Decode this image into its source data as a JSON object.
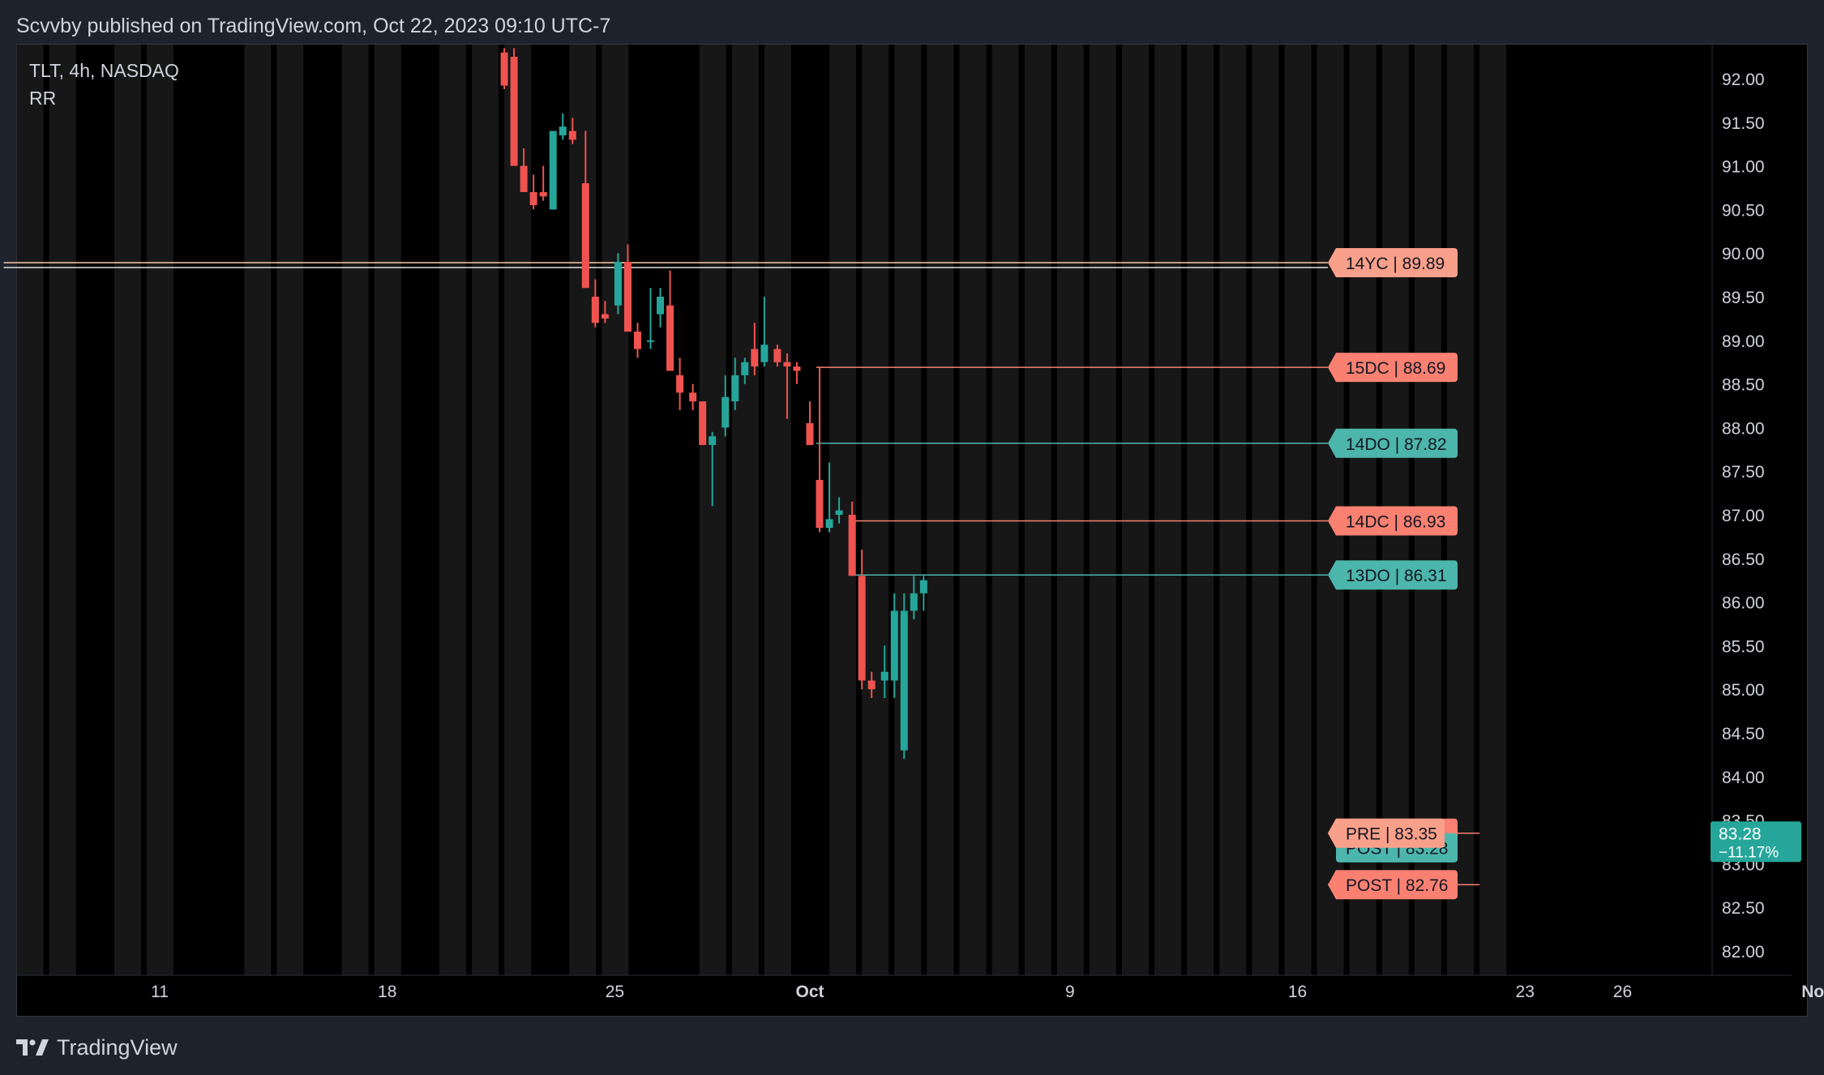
{
  "header": {
    "published_text": "Scvvby published on TradingView.com, Oct 22, 2023 09:10 UTC-7"
  },
  "legend": {
    "symbol_line": "TLT, 4h, NASDAQ",
    "indicator": "RR"
  },
  "footer": {
    "brand": "TradingView"
  },
  "colors": {
    "up": "#26a69a",
    "down": "#ef5350",
    "stripe": "#171717",
    "background": "#000000",
    "frame": "#1e222d",
    "level_down": "#fa8072",
    "level_up": "#4db6ac",
    "yearly_close": "#f8c8a8"
  },
  "chart_data": {
    "type": "candlestick",
    "symbol": "TLT",
    "interval": "4h",
    "exchange": "NASDAQ",
    "ylim": [
      81.8,
      92.35
    ],
    "yticks": [
      "92.00",
      "91.50",
      "91.00",
      "90.50",
      "90.00",
      "89.50",
      "89.00",
      "88.50",
      "88.00",
      "87.50",
      "87.00",
      "86.50",
      "86.00",
      "85.50",
      "85.00",
      "84.50",
      "84.00",
      "83.50",
      "83.00",
      "82.50",
      "82.00"
    ],
    "xlim_days": [
      6.2,
      34.8
    ],
    "xticks": [
      {
        "label": "11",
        "day": 11
      },
      {
        "label": "18",
        "day": 18
      },
      {
        "label": "25",
        "day": 25
      },
      {
        "label": "Oct",
        "day": 31
      },
      {
        "label": "9",
        "day": 39
      },
      {
        "label": "16",
        "day": 46
      },
      {
        "label": "23",
        "day": 53
      },
      {
        "label": "26",
        "day": 56
      },
      {
        "label": "Nov",
        "day": 62
      }
    ],
    "session_stripes": [
      7,
      8,
      10,
      11,
      14,
      15,
      17,
      18,
      20,
      21,
      22,
      24,
      25,
      28,
      29,
      30,
      32,
      33,
      34,
      35,
      36,
      37,
      38,
      39,
      40,
      41,
      42,
      43,
      44,
      45,
      46,
      47,
      48,
      49,
      50,
      51,
      52
    ],
    "candles": [
      {
        "d": 21.6,
        "o": 92.3,
        "h": 92.35,
        "l": 91.88,
        "c": 91.92
      },
      {
        "d": 21.9,
        "o": 92.25,
        "h": 92.35,
        "l": 91.0,
        "c": 91.0
      },
      {
        "d": 22.2,
        "o": 91.0,
        "h": 91.2,
        "l": 90.7,
        "c": 90.7
      },
      {
        "d": 22.5,
        "o": 90.7,
        "h": 90.9,
        "l": 90.5,
        "c": 90.55
      },
      {
        "d": 22.8,
        "o": 90.7,
        "h": 91.0,
        "l": 90.6,
        "c": 90.65
      },
      {
        "d": 23.1,
        "o": 90.5,
        "h": 91.4,
        "l": 90.5,
        "c": 91.4
      },
      {
        "d": 23.4,
        "o": 91.35,
        "h": 91.6,
        "l": 91.3,
        "c": 91.45
      },
      {
        "d": 23.7,
        "o": 91.4,
        "h": 91.55,
        "l": 91.25,
        "c": 91.3
      },
      {
        "d": 24.1,
        "o": 90.8,
        "h": 91.4,
        "l": 89.6,
        "c": 89.6
      },
      {
        "d": 24.4,
        "o": 89.5,
        "h": 89.7,
        "l": 89.15,
        "c": 89.2
      },
      {
        "d": 24.7,
        "o": 89.3,
        "h": 89.45,
        "l": 89.2,
        "c": 89.25
      },
      {
        "d": 25.1,
        "o": 89.4,
        "h": 90.0,
        "l": 89.3,
        "c": 89.9
      },
      {
        "d": 25.4,
        "o": 89.9,
        "h": 90.1,
        "l": 89.1,
        "c": 89.1
      },
      {
        "d": 25.7,
        "o": 89.1,
        "h": 89.2,
        "l": 88.8,
        "c": 88.9
      },
      {
        "d": 26.1,
        "o": 89.0,
        "h": 89.6,
        "l": 88.9,
        "c": 89.0
      },
      {
        "d": 26.4,
        "o": 89.3,
        "h": 89.6,
        "l": 89.15,
        "c": 89.5
      },
      {
        "d": 26.7,
        "o": 89.4,
        "h": 89.8,
        "l": 88.65,
        "c": 88.65
      },
      {
        "d": 27.0,
        "o": 88.6,
        "h": 88.8,
        "l": 88.2,
        "c": 88.4
      },
      {
        "d": 27.4,
        "o": 88.4,
        "h": 88.5,
        "l": 88.2,
        "c": 88.3
      },
      {
        "d": 27.7,
        "o": 88.3,
        "h": 88.3,
        "l": 87.8,
        "c": 87.8
      },
      {
        "d": 28.0,
        "o": 87.8,
        "h": 87.95,
        "l": 87.1,
        "c": 87.9
      },
      {
        "d": 28.4,
        "o": 88.0,
        "h": 88.6,
        "l": 87.9,
        "c": 88.35
      },
      {
        "d": 28.7,
        "o": 88.3,
        "h": 88.8,
        "l": 88.2,
        "c": 88.6
      },
      {
        "d": 29.0,
        "o": 88.6,
        "h": 88.8,
        "l": 88.5,
        "c": 88.75
      },
      {
        "d": 29.3,
        "o": 88.9,
        "h": 89.2,
        "l": 88.6,
        "c": 88.7
      },
      {
        "d": 29.6,
        "o": 88.75,
        "h": 89.5,
        "l": 88.7,
        "c": 88.95
      },
      {
        "d": 30.0,
        "o": 88.9,
        "h": 88.95,
        "l": 88.7,
        "c": 88.75
      },
      {
        "d": 30.3,
        "o": 88.75,
        "h": 88.85,
        "l": 88.1,
        "c": 88.7
      },
      {
        "d": 30.6,
        "o": 88.7,
        "h": 88.75,
        "l": 88.5,
        "c": 88.65
      },
      {
        "d": 31.0,
        "o": 88.05,
        "h": 88.3,
        "l": 87.8,
        "c": 87.8
      },
      {
        "d": 31.3,
        "o": 87.4,
        "h": 88.7,
        "l": 86.8,
        "c": 86.85
      },
      {
        "d": 31.6,
        "o": 86.85,
        "h": 87.6,
        "l": 86.8,
        "c": 86.95
      },
      {
        "d": 31.9,
        "o": 87.0,
        "h": 87.2,
        "l": 86.9,
        "c": 87.05
      },
      {
        "d": 32.3,
        "o": 87.0,
        "h": 87.15,
        "l": 86.3,
        "c": 86.3
      },
      {
        "d": 32.6,
        "o": 86.3,
        "h": 86.6,
        "l": 85.0,
        "c": 85.1
      },
      {
        "d": 32.9,
        "o": 85.1,
        "h": 85.2,
        "l": 84.9,
        "c": 85.0
      },
      {
        "d": 33.3,
        "o": 85.1,
        "h": 85.5,
        "l": 84.9,
        "c": 85.2
      },
      {
        "d": 33.6,
        "o": 85.1,
        "h": 86.1,
        "l": 84.9,
        "c": 85.9
      },
      {
        "d": 33.9,
        "o": 84.3,
        "h": 86.1,
        "l": 84.2,
        "c": 85.9
      },
      {
        "d": 34.2,
        "o": 85.9,
        "h": 86.3,
        "l": 85.8,
        "c": 86.1
      },
      {
        "d": 34.5,
        "o": 86.1,
        "h": 86.3,
        "l": 85.9,
        "c": 86.25
      }
    ],
    "levels": [
      {
        "label": "14YC | 89.89",
        "value": 89.89,
        "kind": "yearly",
        "start_day": 6.2
      },
      {
        "label": "15DC | 88.69",
        "value": 88.69,
        "kind": "down",
        "start_day": 31.2
      },
      {
        "label": "14DO | 87.82",
        "value": 87.82,
        "kind": "up",
        "start_day": 31.2
      },
      {
        "label": "14DC | 86.93",
        "value": 86.93,
        "kind": "down",
        "start_day": 32.3
      },
      {
        "label": "13DO | 86.31",
        "value": 86.31,
        "kind": "up",
        "start_day": 32.3
      },
      {
        "label": "PRE | 83.35",
        "value": 83.35,
        "kind": "down",
        "start_day": 51.6
      },
      {
        "label": "POST | 82.76",
        "value": 82.76,
        "kind": "down",
        "start_day": 51.6
      }
    ],
    "last_price": {
      "price": "83.28",
      "change": "−11.17%",
      "value": 83.28
    },
    "overlapped_tag": {
      "label": "POST | 83.28",
      "value": 83.35
    }
  }
}
